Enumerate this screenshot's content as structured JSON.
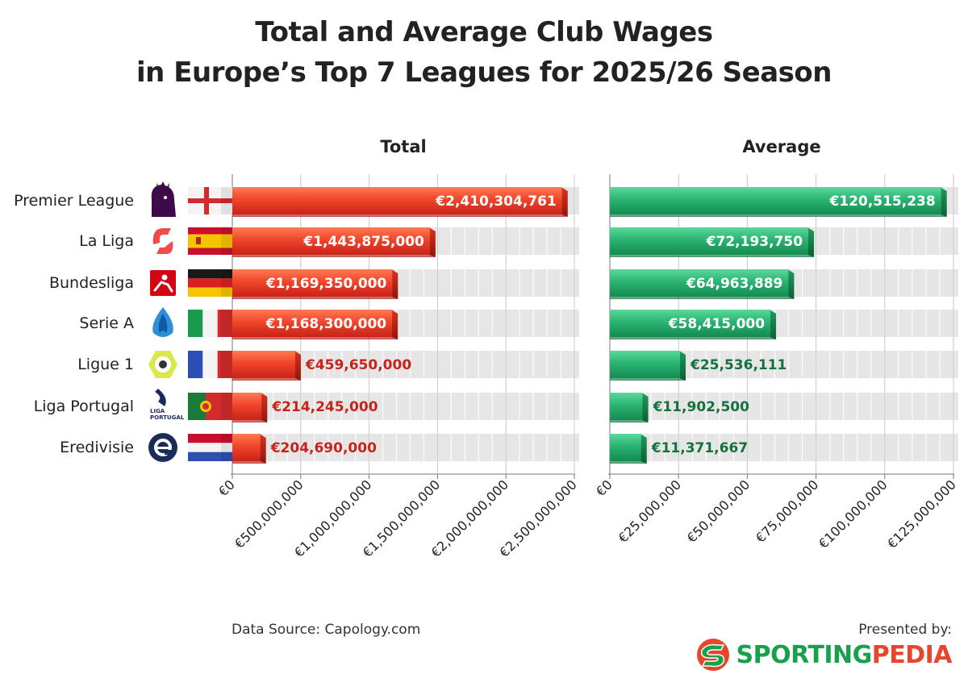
{
  "title_line1": "Total and Average Club Wages",
  "title_line2": "in Europe’s Top 7 Leagues for 2025/26 Season",
  "chart_data": [
    {
      "type": "bar",
      "orientation": "horizontal",
      "title": "Total",
      "categories": [
        "Premier League",
        "La Liga",
        "Bundesliga",
        "Serie A",
        "Ligue 1",
        "Liga Portugal",
        "Eredivisie"
      ],
      "values": [
        2410304761,
        1443875000,
        1169350000,
        1168300000,
        459650000,
        214245000,
        204690000
      ],
      "value_labels": [
        "€2,410,304,761",
        "€1,443,875,000",
        "€1,169,350,000",
        "€1,168,300,000",
        "€459,650,000",
        "€214,245,000",
        "€204,690,000"
      ],
      "xlim": [
        0,
        2500000000
      ],
      "xticks": [
        0,
        500000000,
        1000000000,
        1500000000,
        2000000000,
        2500000000
      ],
      "xtick_labels": [
        "€0",
        "€500,000,000",
        "€1,000,000,000",
        "€1,500,000,000",
        "€2,000,000,000",
        "€2,500,000,000"
      ],
      "color": "#e8452c"
    },
    {
      "type": "bar",
      "orientation": "horizontal",
      "title": "Average",
      "categories": [
        "Premier League",
        "La Liga",
        "Bundesliga",
        "Serie A",
        "Ligue 1",
        "Liga Portugal",
        "Eredivisie"
      ],
      "values": [
        120515238,
        72193750,
        64963889,
        58415000,
        25536111,
        11902500,
        11371667
      ],
      "value_labels": [
        "€120,515,238",
        "€72,193,750",
        "€64,963,889",
        "€58,415,000",
        "€25,536,111",
        "€11,902,500",
        "€11,371,667"
      ],
      "xlim": [
        0,
        125000000
      ],
      "xticks": [
        0,
        25000000,
        50000000,
        75000000,
        100000000,
        125000000
      ],
      "xtick_labels": [
        "€0",
        "€25,000,000",
        "€50,000,000",
        "€75,000,000",
        "€100,000,000",
        "€125,000,000"
      ],
      "color": "#27b071"
    }
  ],
  "leagues": [
    {
      "name": "Premier League",
      "flag": "england"
    },
    {
      "name": "La Liga",
      "flag": "spain"
    },
    {
      "name": "Bundesliga",
      "flag": "germany"
    },
    {
      "name": "Serie A",
      "flag": "italy"
    },
    {
      "name": "Ligue 1",
      "flag": "france"
    },
    {
      "name": "Liga Portugal",
      "flag": "portugal"
    },
    {
      "name": "Eredivisie",
      "flag": "netherlands"
    }
  ],
  "logo_texts": {
    "liga_portugal": "LIGA PORTUGAL"
  },
  "footer": {
    "source": "Data Source: Capology.com",
    "presented_by": "Presented by:",
    "brand_part1": "SPORTING",
    "brand_part2": "PEDIA"
  },
  "colors": {
    "total_bar": "#e8452c",
    "total_label_outside": "#c8231a",
    "average_bar": "#27b071",
    "average_label_outside": "#14703d",
    "stripe": "#e6e6e6"
  }
}
